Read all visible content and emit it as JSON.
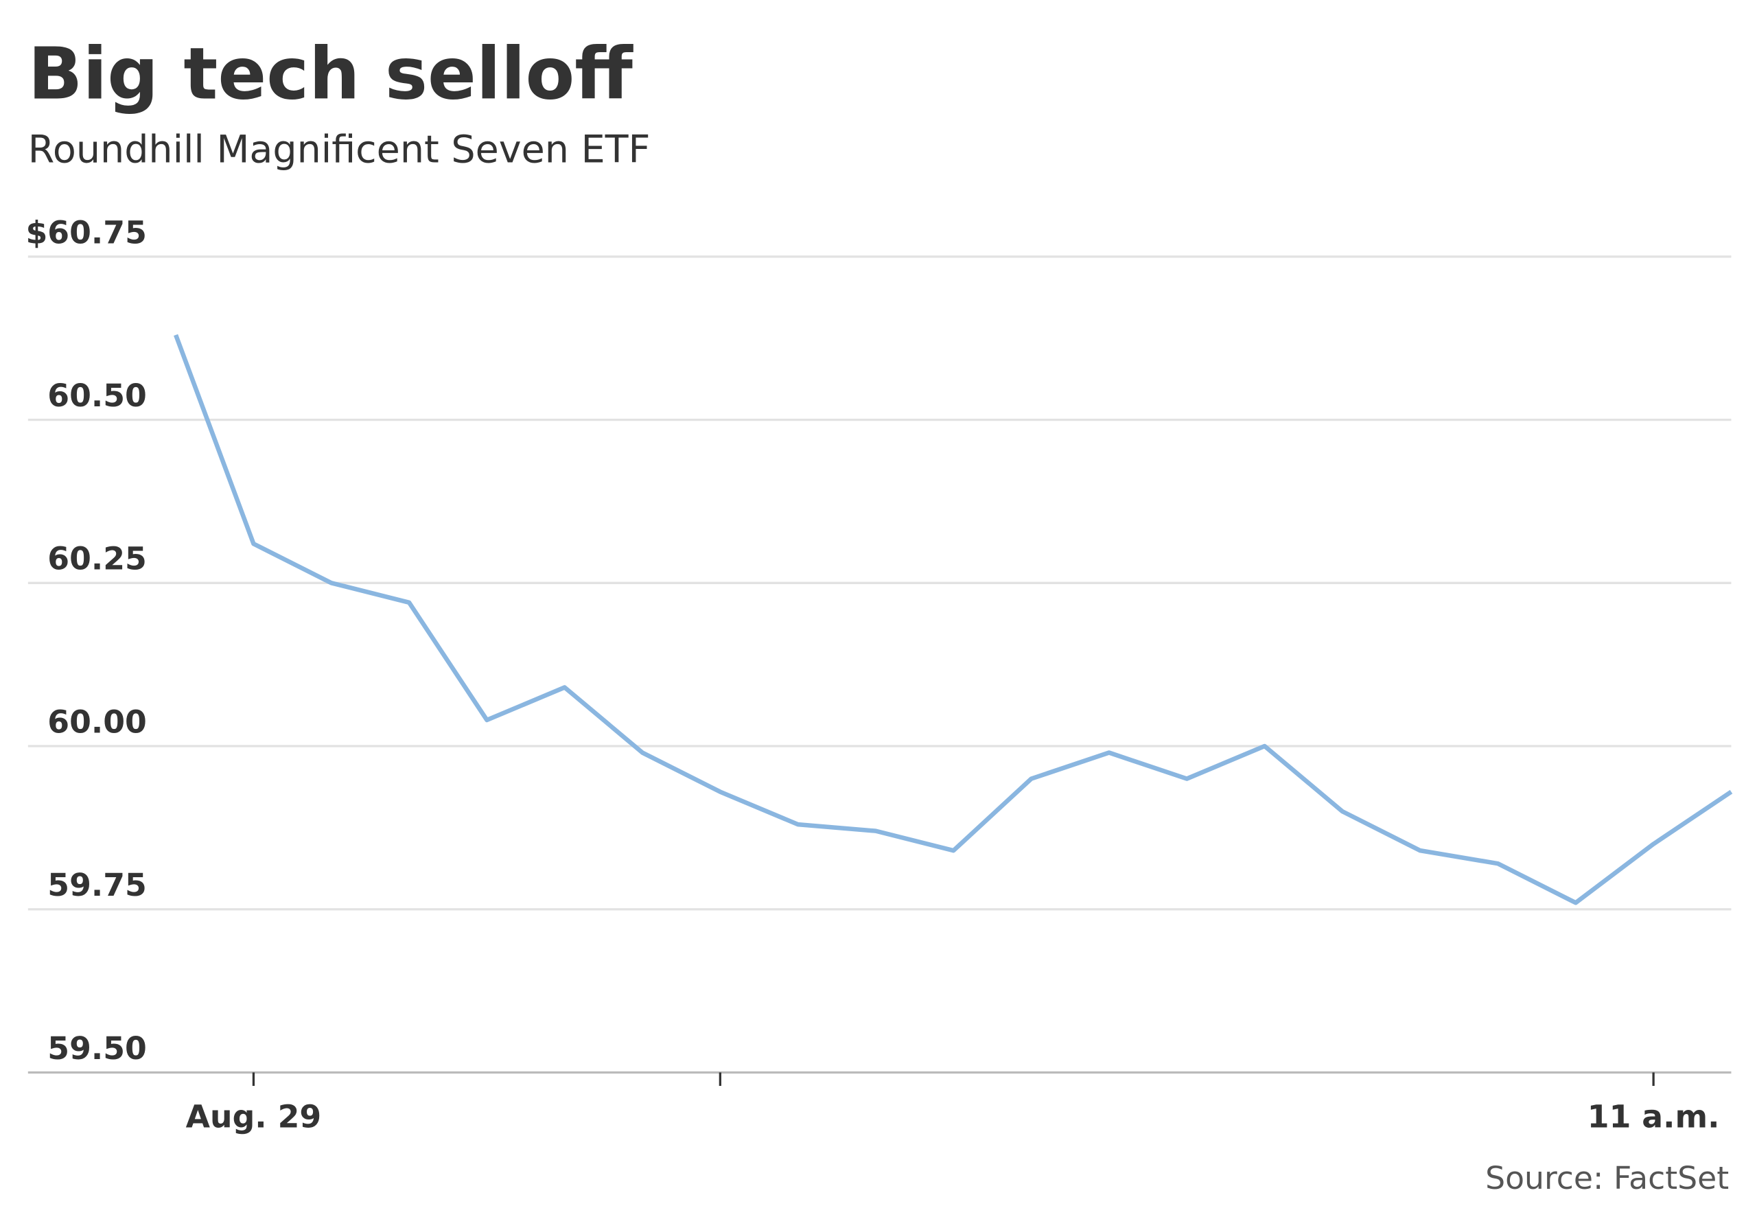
{
  "chart_data": {
    "type": "line",
    "title": "Big tech selloff",
    "subtitle": "Roundhill Magnificent Seven ETF",
    "source": "Source: FactSet",
    "x": [
      0,
      1,
      2,
      3,
      4,
      5,
      6,
      7,
      8,
      9,
      10,
      11,
      12,
      13,
      14,
      15,
      16,
      17,
      18,
      19,
      20
    ],
    "xlim": [
      -1.9,
      20
    ],
    "xticks": [
      {
        "value": 1,
        "label": "Aug. 29"
      },
      {
        "value": 7,
        "label": null
      },
      {
        "value": 19,
        "label": "11 a.m."
      }
    ],
    "series": [
      {
        "color": "#8ab6e0",
        "values": [
          60.63,
          60.31,
          60.25,
          60.22,
          60.04,
          60.09,
          59.99,
          59.93,
          59.88,
          59.87,
          59.84,
          59.95,
          59.99,
          59.95,
          60.0,
          59.9,
          59.84,
          59.82,
          59.76,
          59.85,
          59.93
        ]
      }
    ],
    "ylim": [
      59.5,
      60.75
    ],
    "yticks": [
      {
        "value": 59.5,
        "label": "59.50"
      },
      {
        "value": 59.75,
        "label": "59.75"
      },
      {
        "value": 60,
        "label": "60.00"
      },
      {
        "value": 60.25,
        "label": "60.25"
      },
      {
        "value": 60.5,
        "label": "60.50"
      },
      {
        "value": 60.75,
        "label": "$60.75"
      }
    ],
    "grid": true
  }
}
